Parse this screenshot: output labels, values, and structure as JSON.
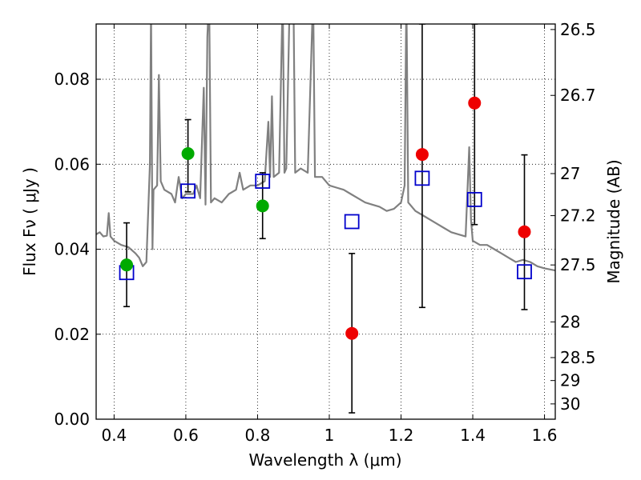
{
  "chart_data": {
    "type": "scatter",
    "xlabel": "Wavelength  λ (μm)",
    "ylabel": "Flux  Fν  ( μJy )",
    "y2label": "Magnitude (AB)",
    "xlim": [
      0.35,
      1.63
    ],
    "ylim": [
      0.0,
      0.093
    ],
    "grid": true,
    "x_ticks": [
      {
        "value": 0.4,
        "label": "0.4"
      },
      {
        "value": 0.6,
        "label": "0.6"
      },
      {
        "value": 0.8,
        "label": "0.8"
      },
      {
        "value": 1.0,
        "label": "1"
      },
      {
        "value": 1.2,
        "label": "1.2"
      },
      {
        "value": 1.4,
        "label": "1.4"
      },
      {
        "value": 1.6,
        "label": "1.6"
      }
    ],
    "y_ticks": [
      {
        "value": 0.0,
        "label": "0.00"
      },
      {
        "value": 0.02,
        "label": "0.02"
      },
      {
        "value": 0.04,
        "label": "0.04"
      },
      {
        "value": 0.06,
        "label": "0.06"
      },
      {
        "value": 0.08,
        "label": "0.08"
      }
    ],
    "magnitude_ticks": [
      {
        "flux": 0.0917,
        "label": "26.5"
      },
      {
        "flux": 0.0762,
        "label": "26.7"
      },
      {
        "flux": 0.0578,
        "label": "27"
      },
      {
        "flux": 0.0479,
        "label": "27.2"
      },
      {
        "flux": 0.0363,
        "label": "27.5"
      },
      {
        "flux": 0.0229,
        "label": "28"
      },
      {
        "flux": 0.0145,
        "label": "28.5"
      },
      {
        "flux": 0.0091,
        "label": "29"
      },
      {
        "flux": 0.0036,
        "label": "30"
      }
    ],
    "series": [
      {
        "kind": "spectrum-line",
        "color": "#808080",
        "points": [
          [
            0.35,
            0.0435
          ],
          [
            0.36,
            0.044
          ],
          [
            0.37,
            0.043
          ],
          [
            0.38,
            0.0432
          ],
          [
            0.385,
            0.0485
          ],
          [
            0.39,
            0.043
          ],
          [
            0.4,
            0.042
          ],
          [
            0.42,
            0.041
          ],
          [
            0.44,
            0.0405
          ],
          [
            0.46,
            0.039
          ],
          [
            0.47,
            0.038
          ],
          [
            0.48,
            0.036
          ],
          [
            0.49,
            0.037
          ],
          [
            0.5,
            0.06
          ],
          [
            0.503,
            0.097
          ],
          [
            0.507,
            0.04
          ],
          [
            0.51,
            0.054
          ],
          [
            0.52,
            0.055
          ],
          [
            0.525,
            0.081
          ],
          [
            0.53,
            0.056
          ],
          [
            0.54,
            0.054
          ],
          [
            0.56,
            0.053
          ],
          [
            0.57,
            0.051
          ],
          [
            0.58,
            0.057
          ],
          [
            0.59,
            0.052
          ],
          [
            0.6,
            0.053
          ],
          [
            0.62,
            0.053
          ],
          [
            0.63,
            0.055
          ],
          [
            0.64,
            0.052
          ],
          [
            0.65,
            0.078
          ],
          [
            0.655,
            0.0505
          ],
          [
            0.66,
            0.09
          ],
          [
            0.665,
            0.1
          ],
          [
            0.67,
            0.051
          ],
          [
            0.68,
            0.052
          ],
          [
            0.7,
            0.051
          ],
          [
            0.72,
            0.053
          ],
          [
            0.74,
            0.054
          ],
          [
            0.75,
            0.058
          ],
          [
            0.76,
            0.054
          ],
          [
            0.78,
            0.055
          ],
          [
            0.8,
            0.055
          ],
          [
            0.82,
            0.056
          ],
          [
            0.83,
            0.07
          ],
          [
            0.835,
            0.057
          ],
          [
            0.84,
            0.076
          ],
          [
            0.845,
            0.057
          ],
          [
            0.86,
            0.058
          ],
          [
            0.87,
            0.1
          ],
          [
            0.875,
            0.058
          ],
          [
            0.88,
            0.059
          ],
          [
            0.89,
            0.1
          ],
          [
            0.9,
            0.1
          ],
          [
            0.905,
            0.058
          ],
          [
            0.92,
            0.059
          ],
          [
            0.94,
            0.058
          ],
          [
            0.955,
            0.1
          ],
          [
            0.96,
            0.057
          ],
          [
            0.98,
            0.057
          ],
          [
            1.0,
            0.055
          ],
          [
            1.02,
            0.0545
          ],
          [
            1.04,
            0.054
          ],
          [
            1.06,
            0.053
          ],
          [
            1.08,
            0.052
          ],
          [
            1.1,
            0.051
          ],
          [
            1.12,
            0.0505
          ],
          [
            1.14,
            0.05
          ],
          [
            1.16,
            0.049
          ],
          [
            1.18,
            0.0495
          ],
          [
            1.2,
            0.051
          ],
          [
            1.21,
            0.055
          ],
          [
            1.215,
            0.1
          ],
          [
            1.22,
            0.051
          ],
          [
            1.24,
            0.049
          ],
          [
            1.26,
            0.048
          ],
          [
            1.28,
            0.047
          ],
          [
            1.3,
            0.046
          ],
          [
            1.32,
            0.045
          ],
          [
            1.34,
            0.044
          ],
          [
            1.36,
            0.0435
          ],
          [
            1.38,
            0.043
          ],
          [
            1.39,
            0.064
          ],
          [
            1.395,
            0.047
          ],
          [
            1.4,
            0.042
          ],
          [
            1.42,
            0.041
          ],
          [
            1.44,
            0.041
          ],
          [
            1.46,
            0.04
          ],
          [
            1.48,
            0.039
          ],
          [
            1.5,
            0.038
          ],
          [
            1.52,
            0.037
          ],
          [
            1.54,
            0.0375
          ],
          [
            1.56,
            0.037
          ],
          [
            1.58,
            0.036
          ],
          [
            1.6,
            0.0355
          ],
          [
            1.63,
            0.035
          ]
        ]
      },
      {
        "kind": "observed",
        "color": "#00aa00",
        "points": [
          {
            "x": 0.435,
            "y": 0.0363,
            "yerr": null
          },
          {
            "x": 0.606,
            "y": 0.0625,
            "yerr": null
          },
          {
            "x": 0.814,
            "y": 0.0502,
            "yerr": null
          }
        ]
      },
      {
        "kind": "observed",
        "color": "#ee0000",
        "points": [
          {
            "x": 1.063,
            "y": 0.0202,
            "yerr": null
          },
          {
            "x": 1.259,
            "y": 0.0623,
            "yerr": null
          },
          {
            "x": 1.405,
            "y": 0.0744,
            "yerr": null
          },
          {
            "x": 1.544,
            "y": 0.0441,
            "yerr": null
          }
        ]
      },
      {
        "kind": "errorbars",
        "color": "#000000",
        "points": [
          {
            "x": 0.435,
            "low": 0.0265,
            "high": 0.0462
          },
          {
            "x": 0.606,
            "low": 0.0535,
            "high": 0.0705
          },
          {
            "x": 0.814,
            "low": 0.0425,
            "high": 0.058
          },
          {
            "x": 1.063,
            "low": 0.0015,
            "high": 0.039
          },
          {
            "x": 1.259,
            "low": 0.0263,
            "high": 0.093
          },
          {
            "x": 1.405,
            "low": 0.0458,
            "high": 0.093
          },
          {
            "x": 1.544,
            "low": 0.0258,
            "high": 0.0622
          }
        ]
      },
      {
        "kind": "model-photometry",
        "color": "#0000cc",
        "points": [
          {
            "x": 0.435,
            "y": 0.0345
          },
          {
            "x": 0.606,
            "y": 0.0537
          },
          {
            "x": 0.814,
            "y": 0.056
          },
          {
            "x": 1.063,
            "y": 0.0465
          },
          {
            "x": 1.259,
            "y": 0.0567
          },
          {
            "x": 1.405,
            "y": 0.0517
          },
          {
            "x": 1.544,
            "y": 0.0347
          }
        ]
      }
    ]
  }
}
